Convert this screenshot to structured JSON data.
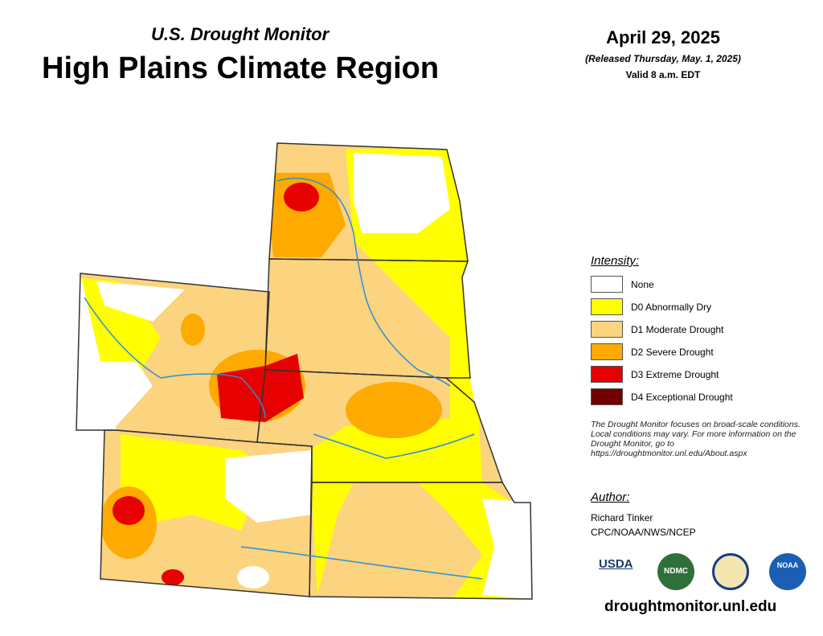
{
  "header": {
    "subtitle": "U.S. Drought Monitor",
    "title": "High Plains Climate Region",
    "date": "April 29, 2025",
    "released": "(Released Thursday, May. 1, 2025)",
    "valid": "Valid 8 a.m. EDT"
  },
  "legend": {
    "title": "Intensity:",
    "items": [
      {
        "label": "None",
        "color": "#ffffff"
      },
      {
        "label": "D0 Abnormally Dry",
        "color": "#ffff00"
      },
      {
        "label": "D1 Moderate Drought",
        "color": "#fcd37f"
      },
      {
        "label": "D2 Severe Drought",
        "color": "#ffaa00"
      },
      {
        "label": "D3 Extreme Drought",
        "color": "#e60000"
      },
      {
        "label": "D4 Exceptional Drought",
        "color": "#730000"
      }
    ]
  },
  "note": "The Drought Monitor focuses on broad-scale conditions. Local conditions may vary. For more information on the Drought Monitor, go to https://droughtmonitor.unl.edu/About.aspx",
  "author": {
    "heading": "Author:",
    "name": "Richard Tinker",
    "org": "CPC/NOAA/NWS/NCEP"
  },
  "logos": [
    "USDA",
    "NDMC",
    "NOAA"
  ],
  "footer": "droughtmonitor.unl.edu"
}
